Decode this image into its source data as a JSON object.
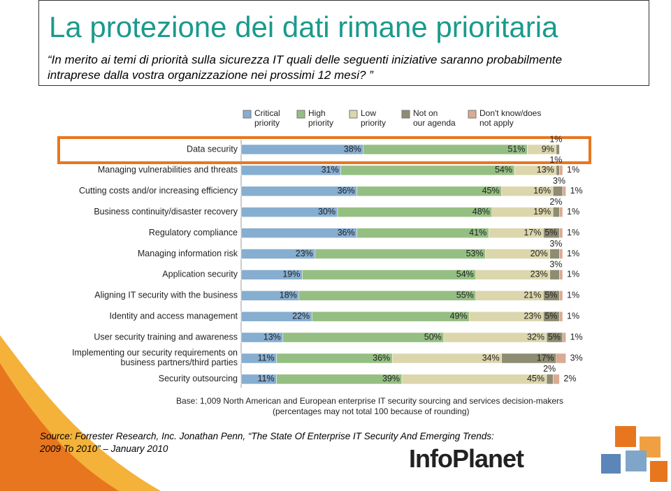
{
  "title": "La protezione dei dati rimane prioritaria",
  "subtitle": "“In merito ai temi di priorità sulla sicurezza IT quali delle seguenti iniziative saranno probabilmente intraprese dalla vostra organizzazione nei prossimi 12 mesi? ”",
  "chart_data": {
    "type": "stacked_barh",
    "categories": [
      "Data security",
      "Managing vulnerabilities and threats",
      "Cutting costs and/or increasing efficiency",
      "Business continuity/disaster recovery",
      "Regulatory compliance",
      "Managing information risk",
      "Application security",
      "Aligning IT security with the business",
      "Identity and access management",
      "User security training and awareness",
      "Implementing our security requirements on business partners/third parties",
      "Security outsourcing"
    ],
    "xlim": [
      0,
      100
    ],
    "series": [
      {
        "name": "Critical priority",
        "color": "#86aed0",
        "values": [
          38,
          31,
          36,
          30,
          36,
          23,
          19,
          18,
          22,
          13,
          11,
          11
        ],
        "value_labels": [
          "38%",
          "31%",
          "36%",
          "30%",
          "36%",
          "23%",
          "19%",
          "18%",
          "22%",
          "13%",
          "11%",
          "11%"
        ]
      },
      {
        "name": "High priority",
        "color": "#95bf82",
        "values": [
          51,
          54,
          45,
          48,
          41,
          53,
          54,
          55,
          49,
          50,
          36,
          39
        ],
        "value_labels": [
          "51%",
          "54%",
          "45%",
          "48%",
          "41%",
          "53%",
          "54%",
          "55%",
          "49%",
          "50%",
          "36%",
          "39%"
        ]
      },
      {
        "name": "Low priority",
        "color": "#dcd6ad",
        "values": [
          9,
          13,
          16,
          19,
          17,
          20,
          23,
          21,
          23,
          32,
          34,
          45
        ],
        "value_labels": [
          "9%",
          "13%",
          "16%",
          "19%",
          "17%",
          "20%",
          "23%",
          "21%",
          "23%",
          "32%",
          "34%",
          "45%"
        ]
      },
      {
        "name": "Not on our agenda",
        "color": "#8e8c72",
        "values": [
          1,
          1,
          3,
          2,
          5,
          3,
          3,
          5,
          5,
          5,
          17,
          2
        ],
        "value_labels": [
          "1%",
          "1%",
          "3%",
          "2%",
          "5%",
          "3%",
          "3%",
          "5%",
          "5%",
          "5%",
          "17%",
          "2%"
        ]
      },
      {
        "name": "Don't know/does not apply",
        "color": "#d8ab92",
        "values": [
          null,
          1,
          1,
          1,
          1,
          1,
          1,
          1,
          1,
          1,
          3,
          2
        ],
        "value_labels": [
          null,
          "1%",
          "1%",
          "1%",
          "1%",
          "1%",
          "1%",
          "1%",
          "1%",
          "1%",
          "3%",
          "2%"
        ]
      }
    ],
    "note": "Base: 1,009 North American and European enterprise IT security sourcing and services decision-makers",
    "note2": "(percentages may not total 100 because of rounding)"
  },
  "source": "Source: Forrester Research, Inc. Jonathan Penn, “The State Of Enterprise IT Security And Emerging Trends: 2009 To 2010” – January 2010",
  "logo": "InfoPlanet"
}
